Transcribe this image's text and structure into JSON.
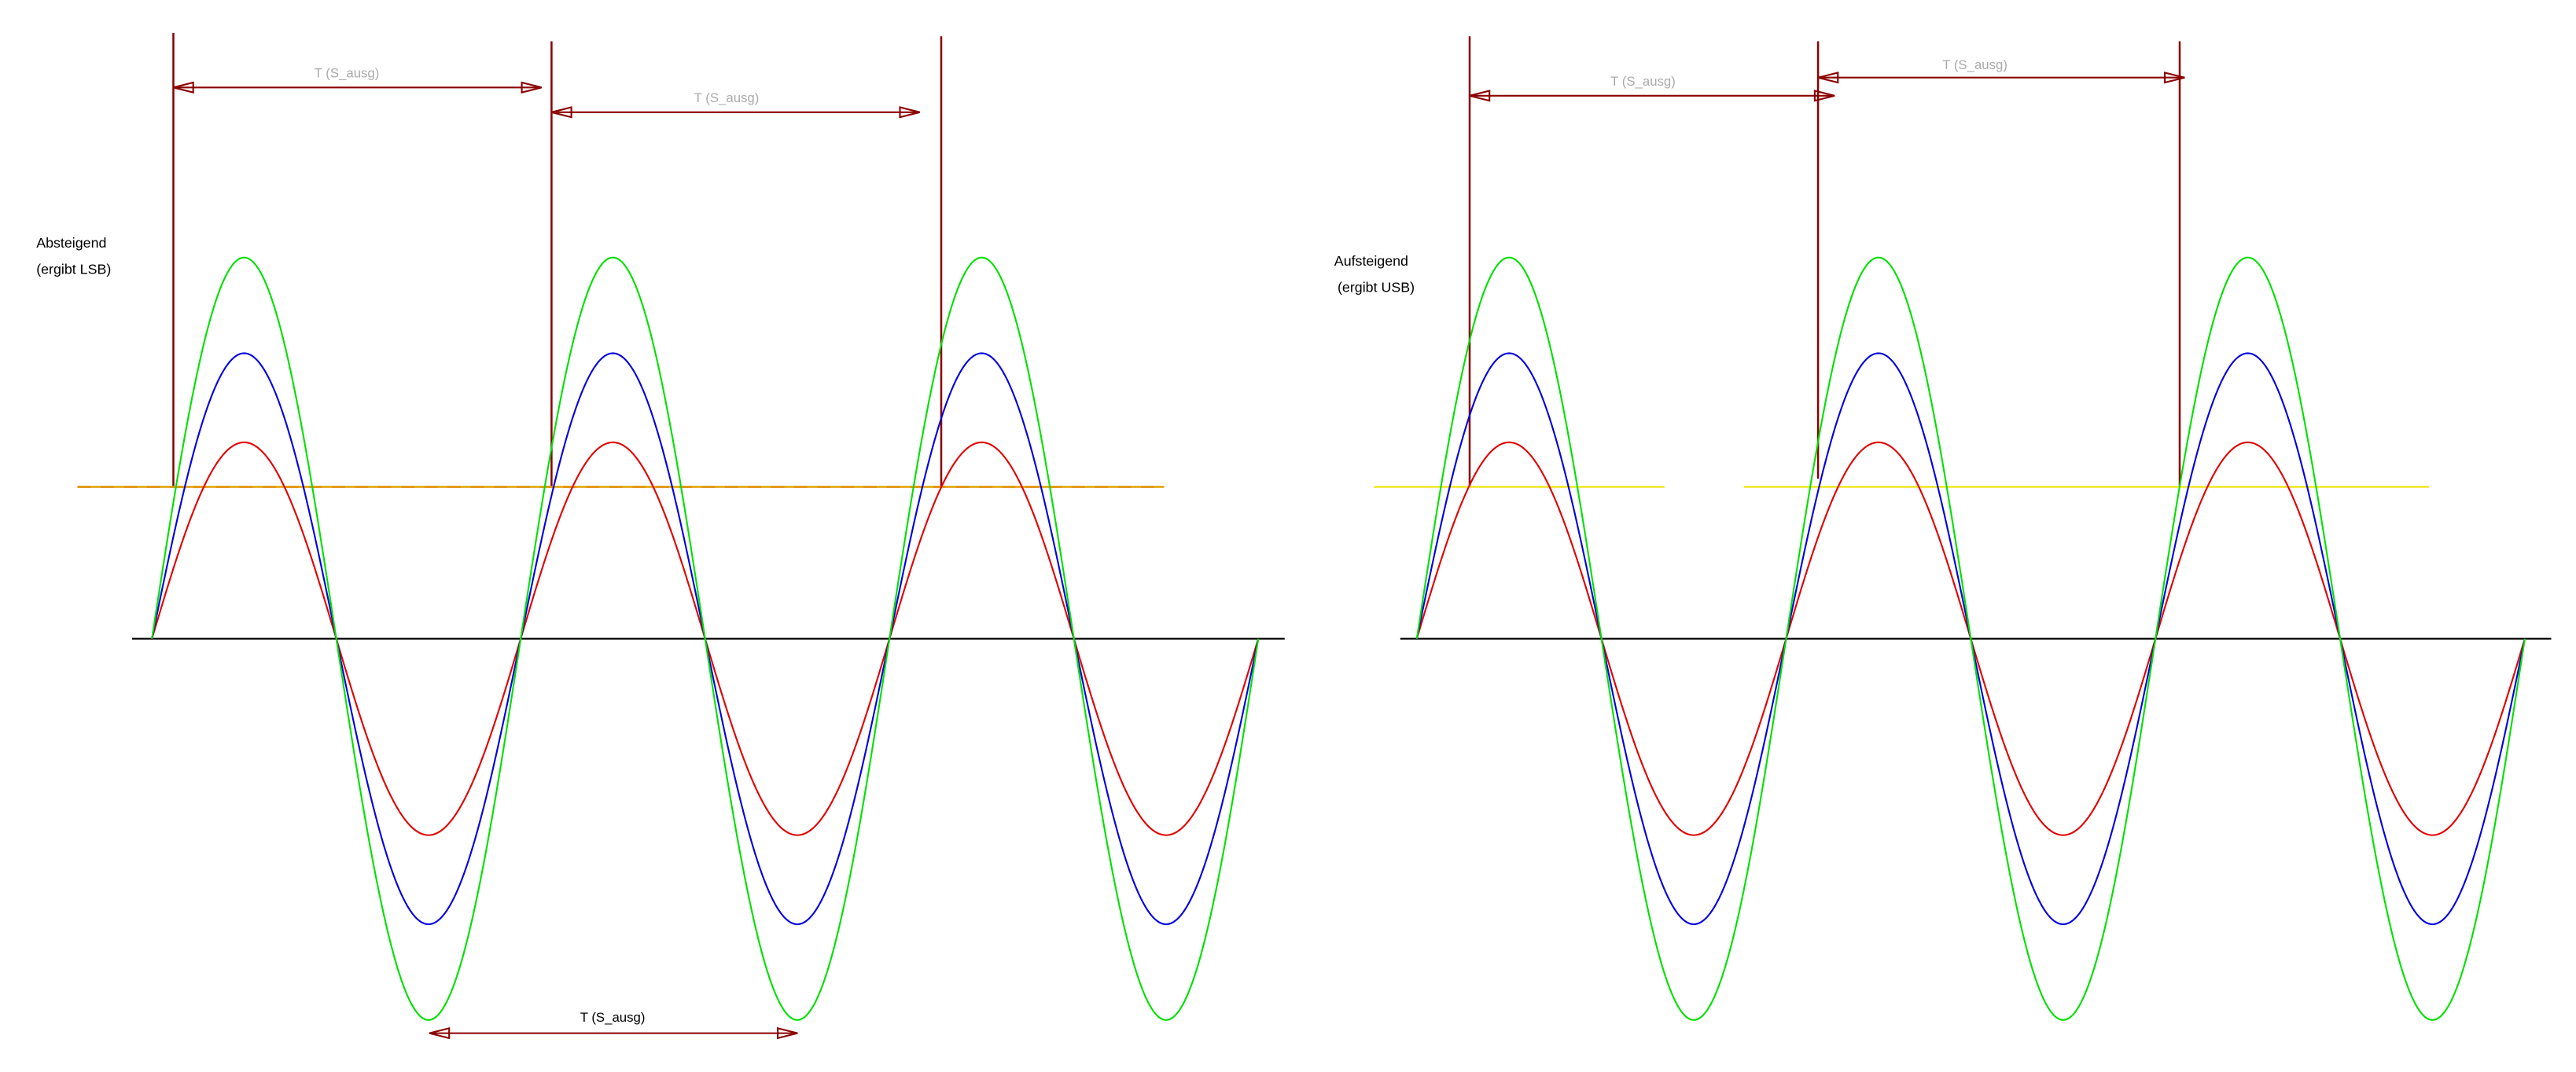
{
  "panels": [
    {
      "label_lines": [
        "Absteigend",
        "(ergibt LSB)"
      ],
      "period_labels": [
        "T (S_ausg)",
        "T (S_ausg)",
        "T (S_ausg)"
      ]
    },
    {
      "label_lines": [
        "Aufsteigend",
        "(ergibt USB)"
      ],
      "period_labels": [
        "T (S_ausg)",
        "T (S_ausg)"
      ]
    }
  ]
}
